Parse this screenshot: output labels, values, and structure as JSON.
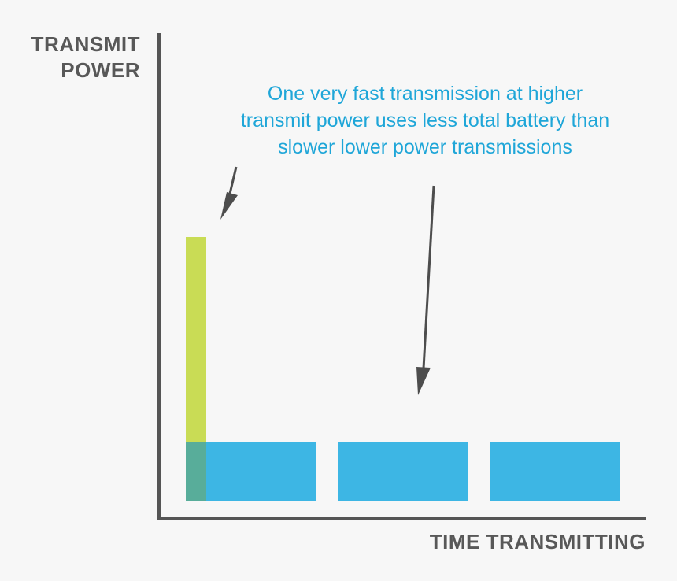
{
  "y_axis_title": [
    "TRANSMIT",
    "POWER"
  ],
  "x_axis_title": "TIME TRANSMITTING",
  "annotation": [
    "One very fast transmission at higher",
    "transmit power uses less total battery than",
    "slower lower power transmissions"
  ],
  "colors": {
    "background": "#f7f7f7",
    "axis": "#555555",
    "axis_title": "#585858",
    "annotation_text": "#1fa6d8",
    "high_power_bar": "#c9dc55",
    "low_power_bar": "#3db6e4",
    "overlap": "#58ad9a",
    "arrow": "#4d4d4d"
  },
  "legend_concept": {
    "high_power_transmissions": 1,
    "low_power_transmissions": 3
  }
}
